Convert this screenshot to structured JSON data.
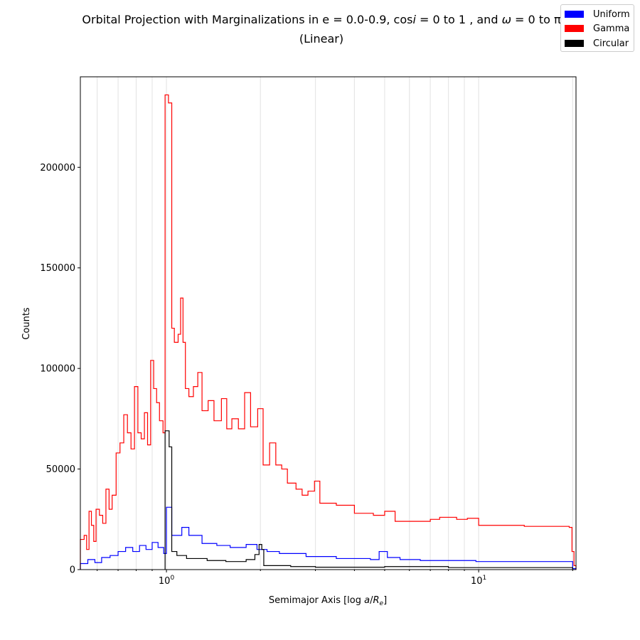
{
  "chart_data": {
    "type": "histogram",
    "title": "Orbital Projection with Marginalizations in e = 0.0-0.9, cos i = 0 to 1 , and ω = 0 to π",
    "title_line1": "Orbital Projection with Marginalizations in e = 0.0-0.9, cos i = 0 to 1 , and ω = 0 to π",
    "subtitle": "(Linear)",
    "xlabel": "Semimajor Axis [log a/R_e]",
    "xlabel_display": "Semimajor Axis [log a/Re]",
    "ylabel": "Counts",
    "xscale": "log",
    "xlim": [
      0.53,
      20.5
    ],
    "ylim": [
      0,
      245000
    ],
    "x_ticks": [
      1,
      10
    ],
    "x_tick_labels": [
      "10^0",
      "10^1"
    ],
    "y_ticks": [
      0,
      50000,
      100000,
      150000,
      200000
    ],
    "y_tick_labels": [
      "0",
      "50000",
      "100000",
      "150000",
      "200000"
    ],
    "grid": "vertical minor lines on x",
    "legend_position": "top-right",
    "series": [
      {
        "name": "Uniform",
        "color": "#0000ff",
        "points": [
          [
            0.53,
            3000
          ],
          [
            0.56,
            5000
          ],
          [
            0.59,
            3500
          ],
          [
            0.62,
            6000
          ],
          [
            0.66,
            7000
          ],
          [
            0.7,
            9000
          ],
          [
            0.74,
            11000
          ],
          [
            0.78,
            9000
          ],
          [
            0.82,
            12000
          ],
          [
            0.86,
            10000
          ],
          [
            0.9,
            13500
          ],
          [
            0.94,
            11000
          ],
          [
            0.98,
            8000
          ],
          [
            1.0,
            31000
          ],
          [
            1.04,
            17000
          ],
          [
            1.12,
            21000
          ],
          [
            1.18,
            17000
          ],
          [
            1.3,
            13000
          ],
          [
            1.45,
            12000
          ],
          [
            1.6,
            11000
          ],
          [
            1.8,
            12500
          ],
          [
            1.95,
            10000
          ],
          [
            2.1,
            9000
          ],
          [
            2.3,
            8000
          ],
          [
            2.8,
            6500
          ],
          [
            3.5,
            5500
          ],
          [
            4.5,
            5000
          ],
          [
            4.8,
            9000
          ],
          [
            5.1,
            6000
          ],
          [
            5.6,
            5000
          ],
          [
            6.5,
            4500
          ],
          [
            8.0,
            4500
          ],
          [
            9.8,
            4000
          ],
          [
            19.5,
            4000
          ],
          [
            20.0,
            500
          ],
          [
            20.5,
            0
          ]
        ]
      },
      {
        "name": "Gamma",
        "color": "#ff0000",
        "points": [
          [
            0.53,
            15000
          ],
          [
            0.545,
            17000
          ],
          [
            0.555,
            10000
          ],
          [
            0.565,
            29000
          ],
          [
            0.575,
            22000
          ],
          [
            0.585,
            14000
          ],
          [
            0.595,
            30000
          ],
          [
            0.61,
            27000
          ],
          [
            0.625,
            23000
          ],
          [
            0.64,
            40000
          ],
          [
            0.655,
            30000
          ],
          [
            0.67,
            37000
          ],
          [
            0.69,
            58000
          ],
          [
            0.71,
            63000
          ],
          [
            0.73,
            77000
          ],
          [
            0.75,
            68000
          ],
          [
            0.77,
            60000
          ],
          [
            0.79,
            91000
          ],
          [
            0.81,
            68000
          ],
          [
            0.83,
            65000
          ],
          [
            0.85,
            78000
          ],
          [
            0.87,
            62000
          ],
          [
            0.89,
            104000
          ],
          [
            0.91,
            90000
          ],
          [
            0.93,
            83000
          ],
          [
            0.95,
            74000
          ],
          [
            0.975,
            68000
          ],
          [
            0.99,
            236000
          ],
          [
            1.015,
            232000
          ],
          [
            1.04,
            120000
          ],
          [
            1.06,
            113000
          ],
          [
            1.09,
            117000
          ],
          [
            1.11,
            135000
          ],
          [
            1.13,
            113000
          ],
          [
            1.15,
            90000
          ],
          [
            1.18,
            86000
          ],
          [
            1.22,
            91000
          ],
          [
            1.26,
            98000
          ],
          [
            1.3,
            79000
          ],
          [
            1.36,
            84000
          ],
          [
            1.42,
            74000
          ],
          [
            1.5,
            85000
          ],
          [
            1.56,
            70000
          ],
          [
            1.62,
            75000
          ],
          [
            1.7,
            70000
          ],
          [
            1.78,
            88000
          ],
          [
            1.86,
            71000
          ],
          [
            1.96,
            80000
          ],
          [
            2.04,
            52000
          ],
          [
            2.14,
            63000
          ],
          [
            2.24,
            52000
          ],
          [
            2.34,
            50000
          ],
          [
            2.44,
            43000
          ],
          [
            2.6,
            40000
          ],
          [
            2.72,
            37000
          ],
          [
            2.84,
            39000
          ],
          [
            2.98,
            44000
          ],
          [
            3.1,
            33000
          ],
          [
            3.5,
            32000
          ],
          [
            4.0,
            28000
          ],
          [
            4.3,
            28000
          ],
          [
            4.6,
            27000
          ],
          [
            5.0,
            29000
          ],
          [
            5.4,
            24000
          ],
          [
            6.0,
            24000
          ],
          [
            7.0,
            25000
          ],
          [
            7.5,
            26000
          ],
          [
            8.5,
            25000
          ],
          [
            9.2,
            25500
          ],
          [
            10.0,
            22000
          ],
          [
            14.0,
            21500
          ],
          [
            19.5,
            21000
          ],
          [
            19.9,
            9000
          ],
          [
            20.2,
            2000
          ],
          [
            20.5,
            0
          ]
        ]
      },
      {
        "name": "Circular",
        "color": "#000000",
        "points": [
          [
            0.99,
            69000
          ],
          [
            1.02,
            61000
          ],
          [
            1.04,
            9000
          ],
          [
            1.08,
            7000
          ],
          [
            1.16,
            5500
          ],
          [
            1.35,
            4500
          ],
          [
            1.55,
            4000
          ],
          [
            1.8,
            5000
          ],
          [
            1.92,
            7500
          ],
          [
            1.98,
            12500
          ],
          [
            2.02,
            10000
          ],
          [
            2.05,
            2000
          ],
          [
            2.5,
            1500
          ],
          [
            3.0,
            1200
          ],
          [
            5.0,
            1500
          ],
          [
            8.0,
            1000
          ],
          [
            19.5,
            1000
          ],
          [
            20.0,
            0
          ]
        ]
      }
    ]
  }
}
